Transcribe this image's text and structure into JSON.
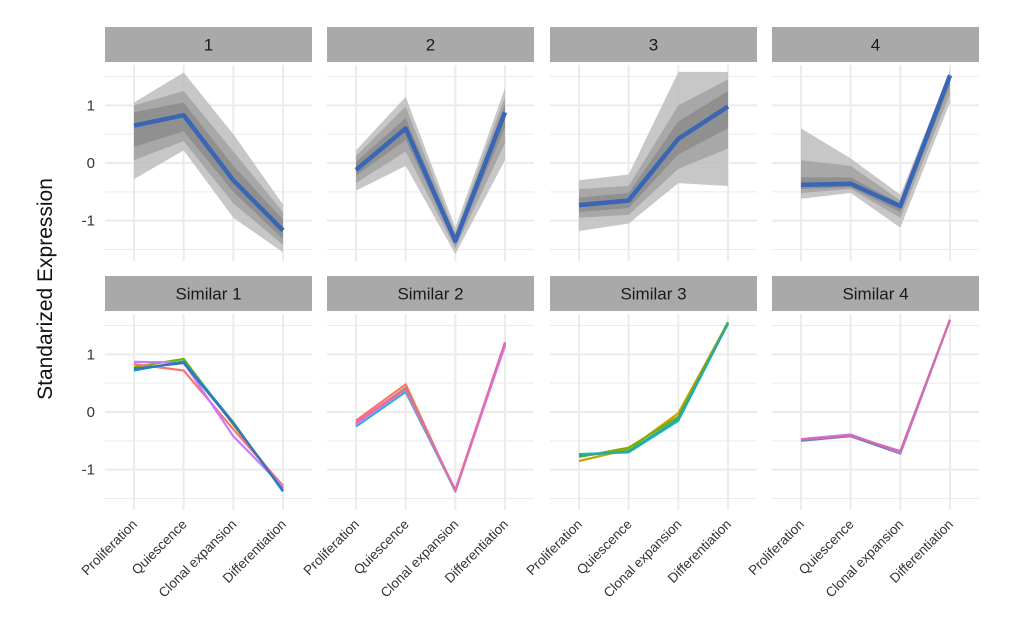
{
  "chart_data": {
    "type": "line",
    "ylabel": "Standarized Expression",
    "xlabel": "",
    "categories": [
      "Proliferation",
      "Quiescence",
      "Clonal expansion",
      "Differentiation"
    ],
    "y_ticks": [
      {
        "value": 1,
        "label": "1"
      },
      {
        "value": 0,
        "label": "0"
      },
      {
        "value": -1,
        "label": "-1"
      }
    ],
    "ylim": [
      -1.7,
      1.7
    ],
    "colors": {
      "strip_fill": "#a9a9a9",
      "panel_bg": "#ffffff",
      "grid": "#ebebeb",
      "mean_line": "#3a66b5",
      "band_outer": "#bdbdbd",
      "band_mid": "#a2a2a2",
      "band_inner": "#8c8c8c"
    },
    "panels": [
      {
        "strip": "1",
        "kind": "band",
        "mean": [
          0.65,
          0.83,
          -0.3,
          -1.17
        ],
        "outer": {
          "low": [
            -0.28,
            0.22,
            -0.95,
            -1.55
          ],
          "high": [
            1.05,
            1.57,
            0.5,
            -0.72
          ]
        },
        "mid": {
          "low": [
            0.05,
            0.38,
            -0.7,
            -1.42
          ],
          "high": [
            1.0,
            1.25,
            0.2,
            -0.85
          ]
        },
        "inner": {
          "low": [
            0.28,
            0.55,
            -0.5,
            -1.32
          ],
          "high": [
            0.88,
            1.05,
            -0.05,
            -0.98
          ]
        }
      },
      {
        "strip": "2",
        "kind": "band",
        "mean": [
          -0.12,
          0.6,
          -1.35,
          0.88
        ],
        "outer": {
          "low": [
            -0.48,
            -0.05,
            -1.58,
            0.05
          ],
          "high": [
            0.22,
            1.15,
            -1.12,
            1.3
          ]
        },
        "mid": {
          "low": [
            -0.35,
            0.2,
            -1.48,
            0.35
          ],
          "high": [
            0.12,
            0.98,
            -1.22,
            1.15
          ]
        },
        "inner": {
          "low": [
            -0.22,
            0.4,
            -1.42,
            0.62
          ],
          "high": [
            0.02,
            0.78,
            -1.28,
            1.02
          ]
        }
      },
      {
        "strip": "3",
        "kind": "band",
        "mean": [
          -0.73,
          -0.65,
          0.42,
          0.98
        ],
        "outer": {
          "low": [
            -1.18,
            -1.05,
            -0.35,
            -0.4
          ],
          "high": [
            -0.3,
            -0.2,
            1.58,
            1.58
          ]
        },
        "mid": {
          "low": [
            -0.95,
            -0.9,
            -0.1,
            0.25
          ],
          "high": [
            -0.45,
            -0.4,
            1.0,
            1.45
          ]
        },
        "inner": {
          "low": [
            -0.85,
            -0.78,
            0.15,
            0.6
          ],
          "high": [
            -0.6,
            -0.52,
            0.72,
            1.25
          ]
        }
      },
      {
        "strip": "4",
        "kind": "band",
        "mean": [
          -0.38,
          -0.36,
          -0.75,
          1.52
        ],
        "outer": {
          "low": [
            -0.62,
            -0.52,
            -1.12,
            1.05
          ],
          "high": [
            0.6,
            0.08,
            -0.55,
            1.6
          ]
        },
        "mid": {
          "low": [
            -0.52,
            -0.45,
            -0.95,
            1.2
          ],
          "high": [
            0.05,
            -0.05,
            -0.65,
            1.56
          ]
        },
        "inner": {
          "low": [
            -0.45,
            -0.42,
            -0.85,
            1.35
          ],
          "high": [
            -0.25,
            -0.25,
            -0.7,
            1.54
          ]
        }
      },
      {
        "strip": "Similar 1",
        "kind": "lines",
        "series": [
          {
            "color": "#7cae00",
            "values": [
              0.78,
              0.92,
              -0.22,
              -1.32
            ]
          },
          {
            "color": "#f8766d",
            "values": [
              0.83,
              0.72,
              -0.3,
              -1.28
            ]
          },
          {
            "color": "#c77cff",
            "values": [
              0.87,
              0.86,
              -0.42,
              -1.3
            ]
          },
          {
            "color": "#00a9b8",
            "values": [
              0.72,
              0.88,
              -0.18,
              -1.38
            ]
          },
          {
            "color": "#3d6fbf",
            "values": [
              0.75,
              0.85,
              -0.2,
              -1.36
            ]
          }
        ]
      },
      {
        "strip": "Similar 2",
        "kind": "lines",
        "series": [
          {
            "color": "#f8766d",
            "values": [
              -0.15,
              0.48,
              -1.38,
              1.18
            ]
          },
          {
            "color": "#7cae00",
            "values": [
              -0.2,
              0.42,
              -1.36,
              1.2
            ]
          },
          {
            "color": "#00bfc4",
            "values": [
              -0.25,
              0.35,
              -1.37,
              1.17
            ]
          },
          {
            "color": "#c77cff",
            "values": [
              -0.22,
              0.38,
              -1.36,
              1.15
            ]
          },
          {
            "color": "#e86aa6",
            "values": [
              -0.18,
              0.4,
              -1.35,
              1.21
            ]
          }
        ]
      },
      {
        "strip": "Similar 3",
        "kind": "lines",
        "series": [
          {
            "color": "#c8a400",
            "values": [
              -0.85,
              -0.65,
              -0.02,
              1.55
            ]
          },
          {
            "color": "#7cae00",
            "values": [
              -0.78,
              -0.62,
              -0.08,
              1.56
            ]
          },
          {
            "color": "#00bfc4",
            "values": [
              -0.73,
              -0.7,
              -0.15,
              1.54
            ]
          },
          {
            "color": "#2ea6a0",
            "values": [
              -0.76,
              -0.68,
              -0.12,
              1.53
            ]
          }
        ]
      },
      {
        "strip": "Similar 4",
        "kind": "lines",
        "series": [
          {
            "color": "#6a78c8",
            "values": [
              -0.5,
              -0.42,
              -0.72,
              1.6
            ]
          },
          {
            "color": "#c77cff",
            "values": [
              -0.47,
              -0.39,
              -0.7,
              1.6
            ]
          },
          {
            "color": "#d36ba8",
            "values": [
              -0.48,
              -0.41,
              -0.68,
              1.6
            ]
          }
        ]
      }
    ]
  }
}
